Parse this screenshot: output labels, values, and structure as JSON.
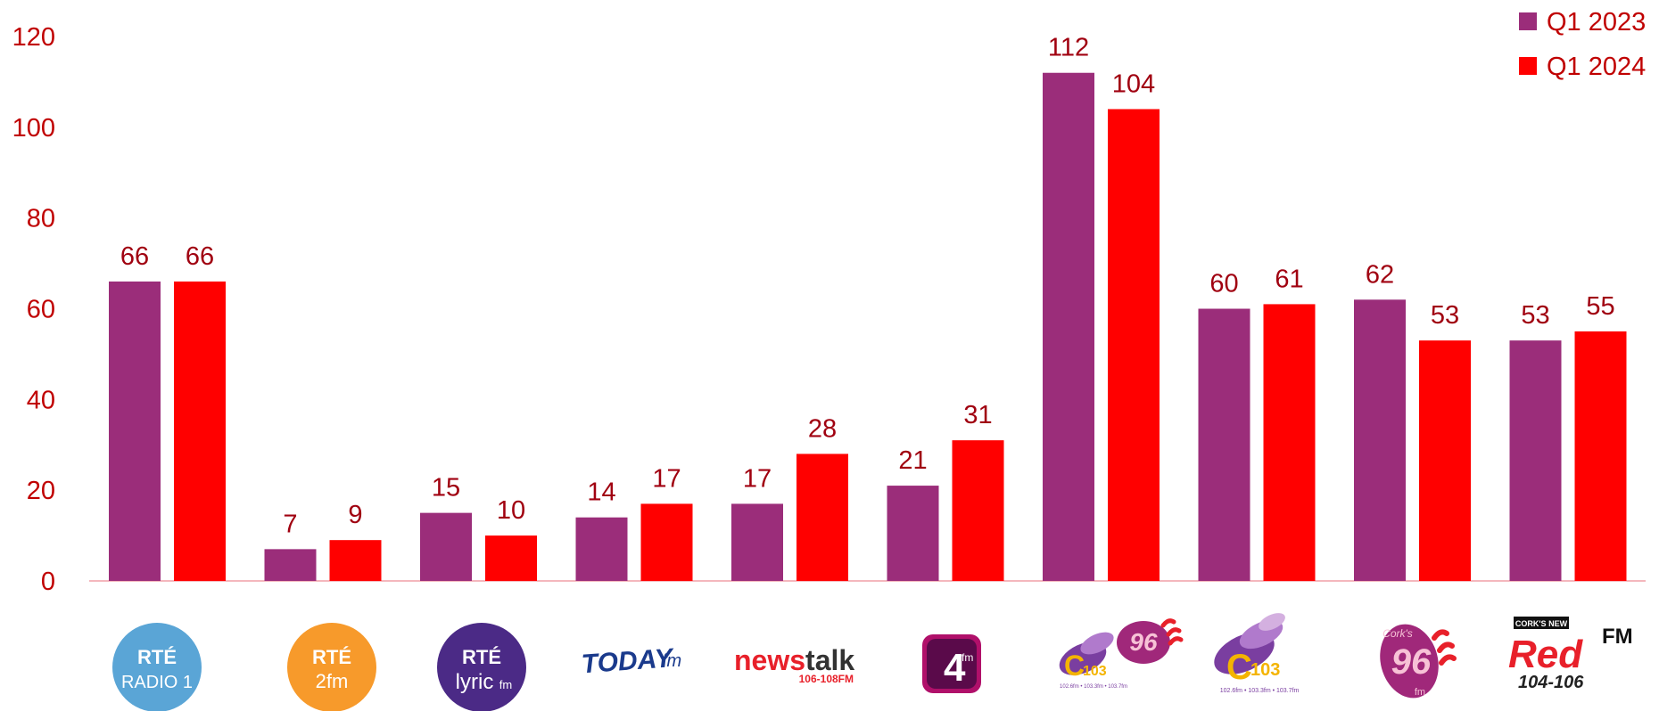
{
  "chart_data": {
    "type": "bar",
    "title": "",
    "xlabel": "",
    "ylabel": "",
    "ylim": [
      0,
      120
    ],
    "yticks": [
      0,
      20,
      40,
      60,
      80,
      100,
      120
    ],
    "grid": false,
    "legend_position": "top-right",
    "categories": [
      "RTÉ Radio 1",
      "RTÉ 2fm",
      "RTÉ lyric fm",
      "Today FM",
      "Newstalk",
      "4fm",
      "C103 / Cork's 96fm",
      "C103",
      "Cork's 96fm",
      "Cork's Red FM"
    ],
    "series": [
      {
        "name": "Q1 2023",
        "color": "#9b2d7a",
        "values": [
          66,
          7,
          15,
          14,
          17,
          21,
          112,
          60,
          62,
          53
        ]
      },
      {
        "name": "Q1 2024",
        "color": "#ff0000",
        "values": [
          66,
          9,
          10,
          17,
          28,
          31,
          104,
          61,
          53,
          55
        ]
      }
    ],
    "category_logos": [
      "rte-radio1-logo",
      "rte-2fm-logo",
      "rte-lyricfm-logo",
      "todayfm-logo",
      "newstalk-logo",
      "4fm-logo",
      "c103-cork96fm-logo",
      "c103-logo",
      "cork96fm-logo",
      "redfm-logo"
    ]
  },
  "logos": {
    "rte_radio1": {
      "line1": "RTÉ",
      "line2": "RADIO 1",
      "color": "#5aa5d6"
    },
    "rte_2fm": {
      "line1": "RTÉ",
      "line2": "2fm",
      "color": "#f79a2b"
    },
    "rte_lyric": {
      "line1": "RTÉ",
      "line2": "lyric",
      "line3": "fm",
      "color": "#4b2a86"
    },
    "todayfm": {
      "main": "TODAY",
      "suffix": "fm",
      "color": "#1a3a8c"
    },
    "newstalk": {
      "part1": "news",
      "part2": "talk",
      "freq": "106-108FM"
    },
    "fourfm": {
      "main": "4",
      "suffix": "fm"
    },
    "c103": {
      "main": "C",
      "num": "103",
      "freqs": "102.6fm • 103.3fm • 103.7fm"
    },
    "cork96": {
      "prefix": "Cork's",
      "num": "96",
      "suffix": "fm"
    },
    "redfm": {
      "top": "CORK'S NEW",
      "main": "Red",
      "fm": "FM",
      "freq": "104-106"
    }
  }
}
